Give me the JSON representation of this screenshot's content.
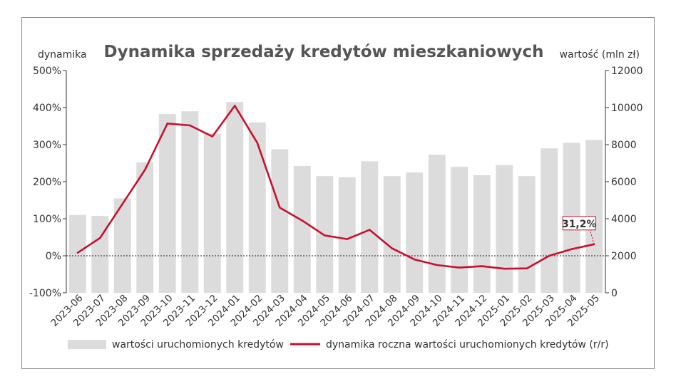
{
  "chart_data": {
    "type": "bar",
    "title": "Dynamika sprzedaży kredytów mieszkaniowych",
    "left_axis_label": "dynamika",
    "right_axis_label": "wartość (mln zł)",
    "categories": [
      "2023-06",
      "2023-07",
      "2023-08",
      "2023-09",
      "2023-10",
      "2023-11",
      "2023-12",
      "2024-01",
      "2024-02",
      "2024-03",
      "2024-04",
      "2024-05",
      "2024-06",
      "2024-07",
      "2024-08",
      "2024-09",
      "2024-10",
      "2024-11",
      "2024-12",
      "2025-01",
      "2025-02",
      "2025-03",
      "2025-04",
      "2025-05"
    ],
    "left_ylim": [
      -100,
      500
    ],
    "left_ticks": [
      -100,
      0,
      100,
      200,
      300,
      400,
      500
    ],
    "left_tick_labels": [
      "-100%",
      "0%",
      "100%",
      "200%",
      "300%",
      "400%",
      "500%"
    ],
    "right_ylim": [
      0,
      12000
    ],
    "right_ticks": [
      0,
      2000,
      4000,
      6000,
      8000,
      10000,
      12000
    ],
    "right_tick_labels": [
      "0",
      "2000",
      "4000",
      "6000",
      "8000",
      "10000",
      "12000"
    ],
    "series": [
      {
        "name": "wartości uruchomionych kredytów",
        "type": "bar",
        "axis": "right",
        "color": "#dcdcdc",
        "values": [
          4200,
          4150,
          5100,
          7050,
          9650,
          9800,
          8600,
          10300,
          9200,
          7750,
          6850,
          6300,
          6250,
          7100,
          6300,
          6500,
          7450,
          6800,
          6350,
          6900,
          6300,
          7800,
          8100,
          8250
        ]
      },
      {
        "name": "dynamika roczna wartości uruchomionych kredytów (r/r)",
        "type": "line",
        "axis": "left",
        "color": "#c8102e",
        "values": [
          8,
          48,
          140,
          232,
          357,
          352,
          322,
          405,
          305,
          130,
          95,
          55,
          45,
          70,
          20,
          -10,
          -25,
          -32,
          -28,
          -35,
          -34,
          0,
          18,
          31.2
        ]
      }
    ],
    "annotation": {
      "text": "31,2%",
      "category": "2025-05",
      "value": 31.2
    },
    "zero_line": "dotted",
    "grid": false,
    "legend_position": "bottom"
  }
}
